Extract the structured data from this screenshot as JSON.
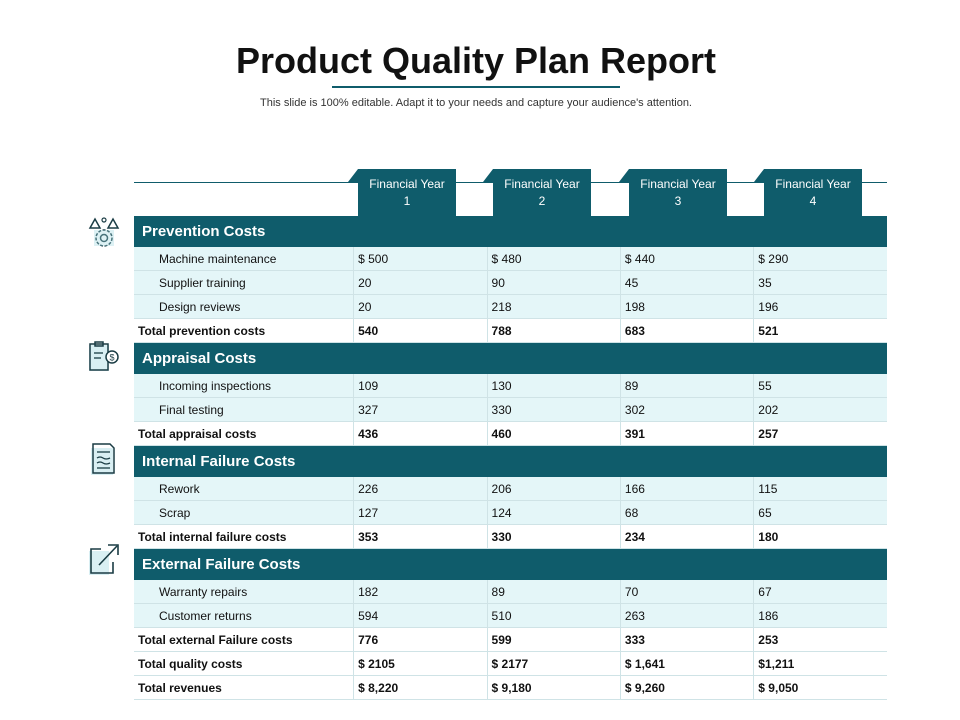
{
  "title": "Product Quality Plan Report",
  "subtitle": "This slide is 100% editable. Adapt it to your needs and capture your audience's attention.",
  "years": [
    {
      "line1": "Financial Year",
      "line2": "1"
    },
    {
      "line1": "Financial Year",
      "line2": "2"
    },
    {
      "line1": "Financial Year",
      "line2": "3"
    },
    {
      "line1": "Financial Year",
      "line2": "4"
    }
  ],
  "sections": [
    {
      "title": "Prevention Costs",
      "icon": "gear-warning-icon",
      "items": [
        {
          "label": "Machine maintenance",
          "values": [
            "$ 500",
            "$ 480",
            "$ 440",
            "$ 290"
          ]
        },
        {
          "label": "Supplier training",
          "values": [
            "20",
            "90",
            "45",
            "35"
          ]
        },
        {
          "label": "Design reviews",
          "values": [
            "20",
            "218",
            "198",
            "196"
          ]
        }
      ],
      "total": {
        "label": "Total prevention costs",
        "values": [
          "540",
          "788",
          "683",
          "521"
        ]
      }
    },
    {
      "title": "Appraisal Costs",
      "icon": "clipboard-dollar-icon",
      "items": [
        {
          "label": "Incoming inspections",
          "values": [
            "109",
            "130",
            "89",
            "55"
          ]
        },
        {
          "label": "Final testing",
          "values": [
            "327",
            "330",
            "302",
            "202"
          ]
        }
      ],
      "total": {
        "label": "Total appraisal costs",
        "values": [
          "436",
          "460",
          "391",
          "257"
        ]
      }
    },
    {
      "title": "Internal Failure Costs",
      "icon": "document-icon",
      "items": [
        {
          "label": "Rework",
          "values": [
            "226",
            "206",
            "166",
            "115"
          ]
        },
        {
          "label": "Scrap",
          "values": [
            "127",
            "124",
            "68",
            "65"
          ]
        }
      ],
      "total": {
        "label": "Total internal failure costs",
        "values": [
          "353",
          "330",
          "234",
          "180"
        ]
      }
    },
    {
      "title": "External Failure Costs",
      "icon": "external-link-icon",
      "items": [
        {
          "label": "Warranty repairs",
          "values": [
            "182",
            "89",
            "70",
            "67"
          ]
        },
        {
          "label": "Customer returns",
          "values": [
            "594",
            "510",
            "263",
            "186"
          ]
        }
      ],
      "total": {
        "label": "Total external Failure costs",
        "values": [
          "776",
          "599",
          "333",
          "253"
        ]
      }
    }
  ],
  "summary": [
    {
      "label": "Total quality costs",
      "values": [
        "$ 2105",
        "$ 2177",
        "$ 1,641",
        "$1,211"
      ]
    },
    {
      "label": "Total revenues",
      "values": [
        "$ 8,220",
        "$ 9,180",
        "$ 9,260",
        "$ 9,050"
      ]
    }
  ],
  "colors": {
    "accent": "#0f5c6b",
    "row_fill": "#e4f6f8"
  }
}
